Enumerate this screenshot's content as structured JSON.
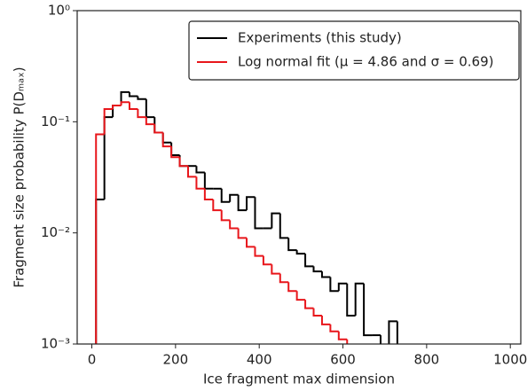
{
  "chart_data": {
    "type": "step-histogram",
    "xlabel": "Ice fragment max dimension",
    "ylabel": "Fragment size probability P(Dₘₐₓ)",
    "bins": [
      10,
      30,
      50,
      70,
      90,
      110,
      130,
      150,
      170,
      190,
      210,
      230,
      250,
      270,
      290,
      310,
      330,
      350,
      370,
      390,
      410,
      430,
      450,
      470,
      490,
      510,
      530,
      550,
      570,
      590,
      610,
      630,
      650,
      670,
      690,
      710,
      730,
      750
    ],
    "series": [
      {
        "name": "Experiments (this study)",
        "color": "#000000",
        "values": [
          0.02,
          0.11,
          0.14,
          0.185,
          0.17,
          0.16,
          0.11,
          0.08,
          0.065,
          0.05,
          0.04,
          0.04,
          0.035,
          0.025,
          0.025,
          0.019,
          0.022,
          0.016,
          0.021,
          0.011,
          0.011,
          0.015,
          0.009,
          0.007,
          0.0065,
          0.005,
          0.0045,
          0.004,
          0.003,
          0.0035,
          0.0018,
          0.0035,
          0.0012,
          0.0012,
          null,
          0.0016,
          null
        ]
      },
      {
        "name": "Log normal fit (μ = 4.86 and σ = 0.69)",
        "color": "#e8161b",
        "values": [
          0.077,
          0.13,
          0.14,
          0.15,
          0.13,
          0.11,
          0.095,
          0.08,
          0.06,
          0.048,
          0.04,
          0.032,
          0.025,
          0.02,
          0.016,
          0.013,
          0.011,
          0.009,
          0.0075,
          0.0062,
          0.0052,
          0.0043,
          0.0036,
          0.003,
          0.0025,
          0.0021,
          0.0018,
          0.0015,
          0.0013,
          0.0011,
          null,
          null,
          null,
          null,
          null,
          null,
          null
        ]
      }
    ],
    "xlim": [
      -35,
      1025
    ],
    "xticks": [
      0,
      200,
      400,
      600,
      800,
      1000
    ],
    "ylim": [
      0.001,
      1
    ],
    "log_y": true,
    "yticks": [
      {
        "value": 0.001,
        "label": "10⁻³"
      },
      {
        "value": 0.01,
        "label": "10⁻²"
      },
      {
        "value": 0.1,
        "label": "10⁻¹"
      },
      {
        "value": 1,
        "label": "10⁰"
      }
    ]
  }
}
